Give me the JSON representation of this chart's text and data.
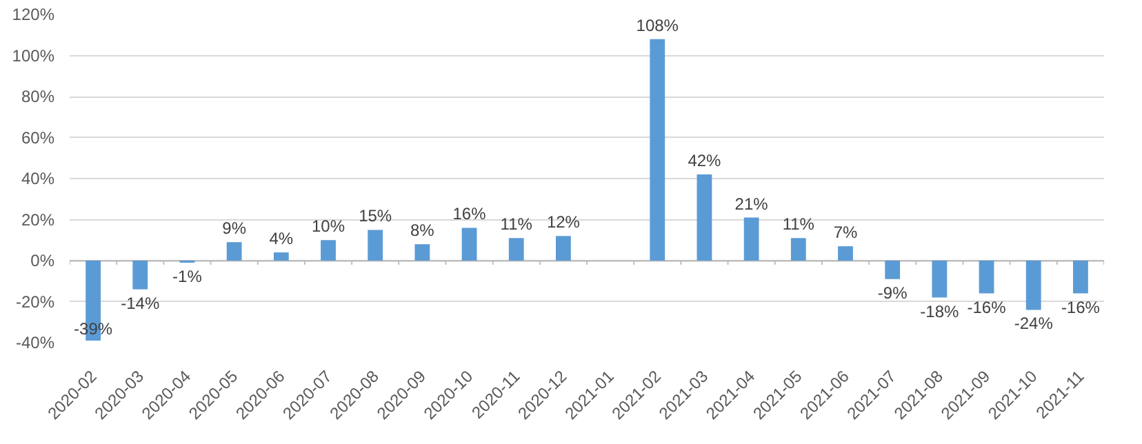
{
  "chart_data": {
    "type": "bar",
    "categories": [
      "2020-02",
      "2020-03",
      "2020-04",
      "2020-05",
      "2020-06",
      "2020-07",
      "2020-08",
      "2020-09",
      "2020-10",
      "2020-11",
      "2020-12",
      "2021-01",
      "2021-02",
      "2021-03",
      "2021-04",
      "2021-05",
      "2021-06",
      "2021-07",
      "2021-08",
      "2021-09",
      "2021-10",
      "2021-11"
    ],
    "values": [
      -39,
      -14,
      -1,
      9,
      4,
      10,
      15,
      8,
      16,
      11,
      12,
      null,
      108,
      42,
      21,
      11,
      7,
      -9,
      -18,
      -16,
      -24,
      -16
    ],
    "value_labels": [
      "-39%",
      "-14%",
      "-1%",
      "9%",
      "4%",
      "10%",
      "15%",
      "8%",
      "16%",
      "11%",
      "12%",
      null,
      "108%",
      "42%",
      "21%",
      "11%",
      "7%",
      "-9%",
      "-18%",
      "-16%",
      "-24%",
      "-16%"
    ],
    "color": "#5b9bd5",
    "ylim": [
      -40,
      120
    ],
    "yticks": [
      {
        "value": -40,
        "label": "-40%"
      },
      {
        "value": -20,
        "label": "-20%"
      },
      {
        "value": 0,
        "label": "0%"
      },
      {
        "value": 20,
        "label": "20%"
      },
      {
        "value": 40,
        "label": "40%"
      },
      {
        "value": 60,
        "label": "60%"
      },
      {
        "value": 80,
        "label": "80%"
      },
      {
        "value": 100,
        "label": "100%"
      },
      {
        "value": 120,
        "label": "120%"
      }
    ],
    "grid": "y"
  }
}
